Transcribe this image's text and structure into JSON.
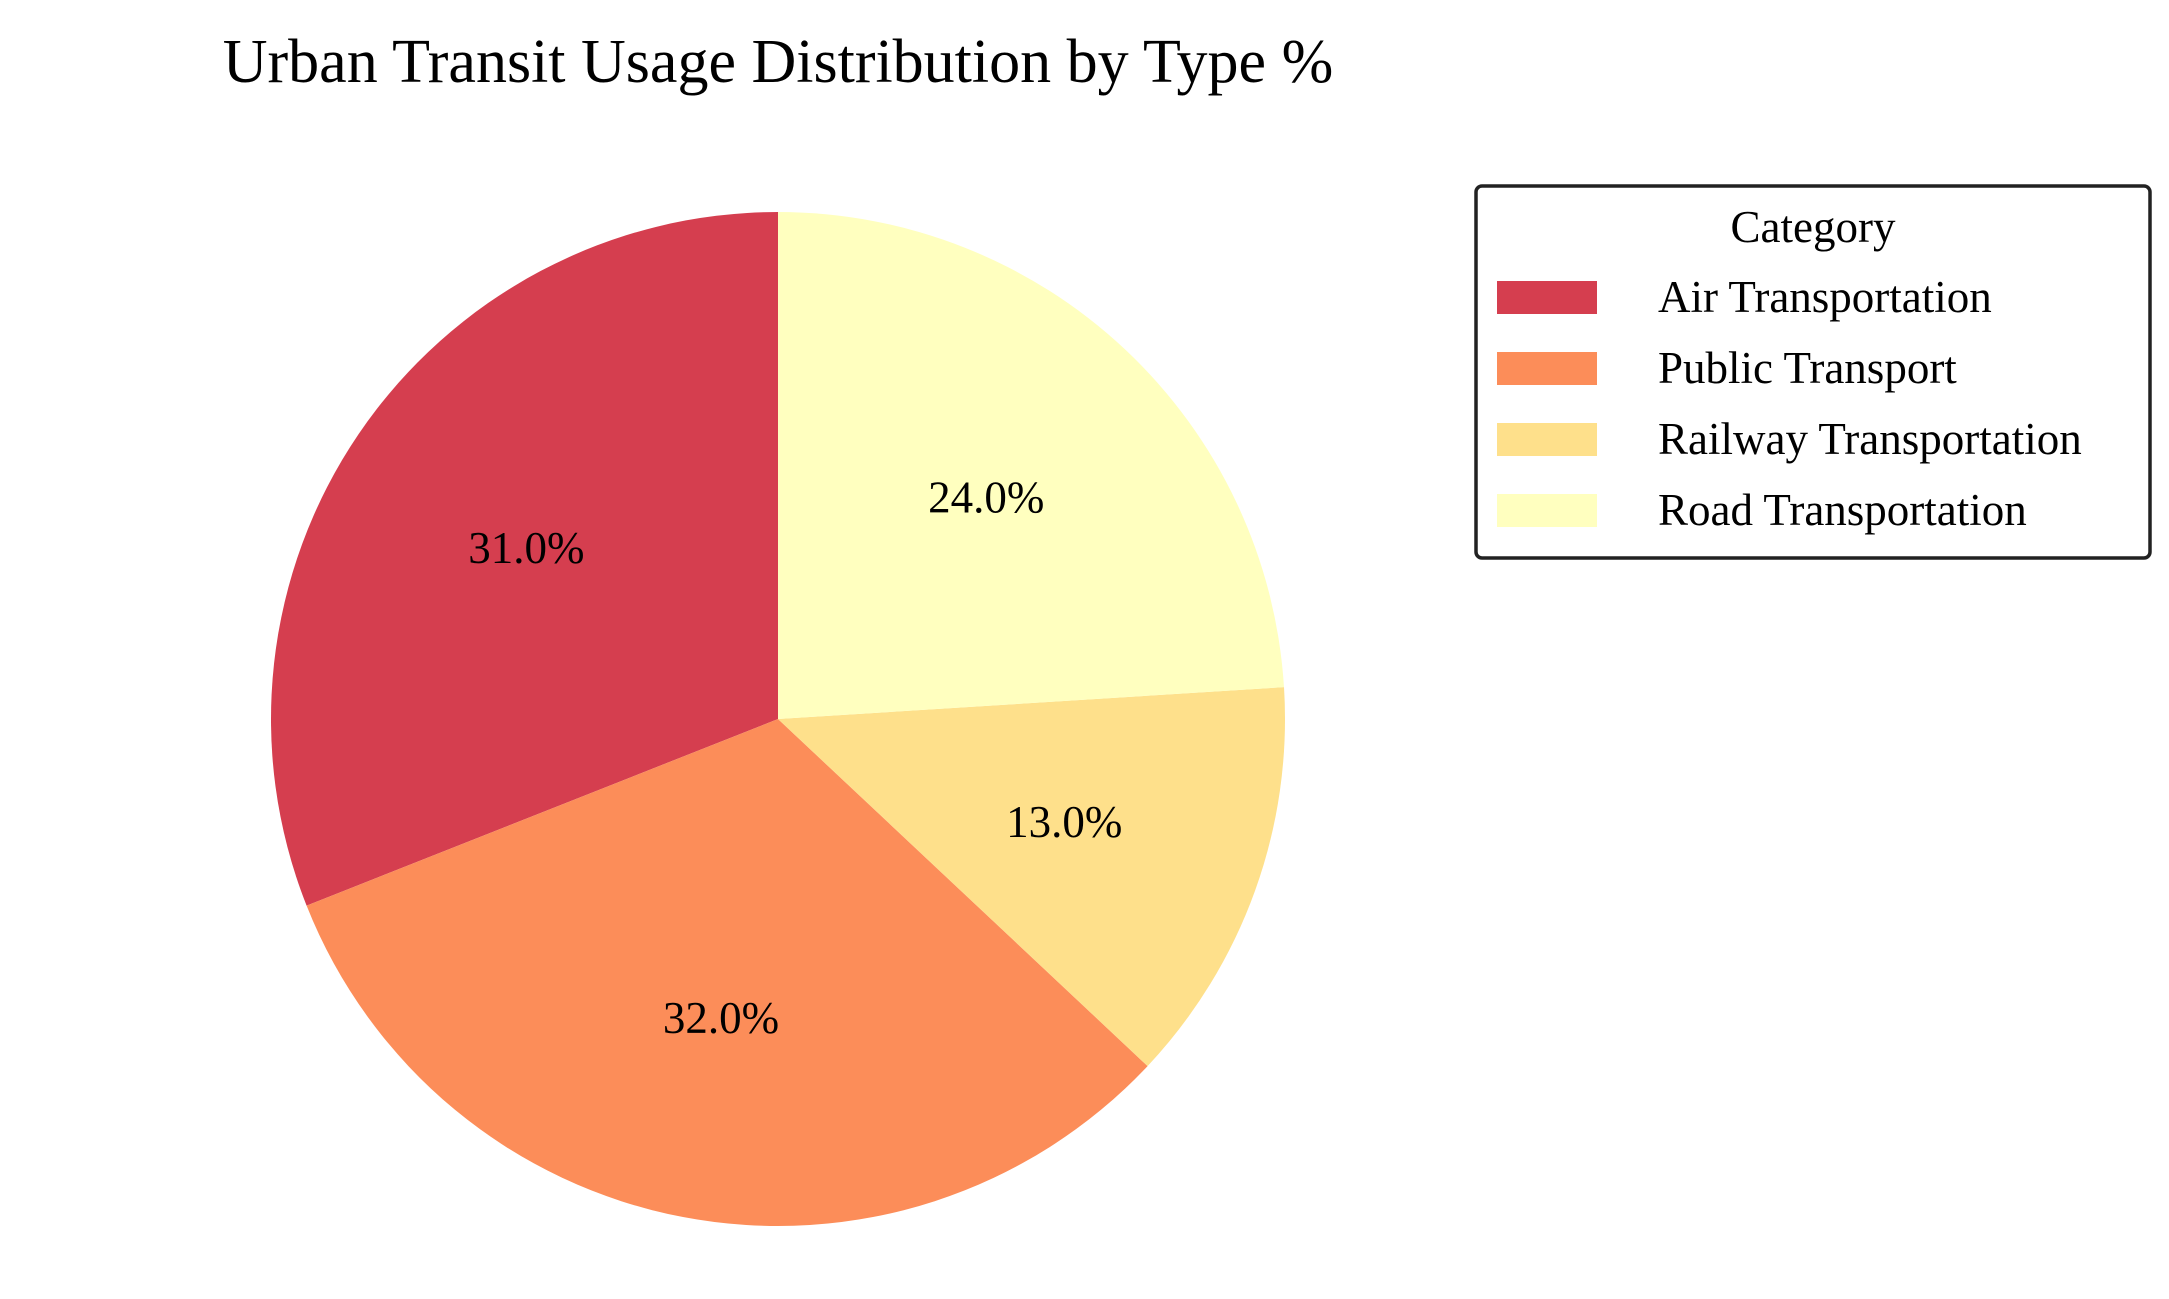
{
  "chart_data": {
    "type": "pie",
    "title": "Urban Transit Usage Distribution by Type %",
    "categories": [
      "Air Transportation",
      "Public Transport",
      "Railway Transportation",
      "Road Transportation"
    ],
    "values": [
      31.0,
      32.0,
      13.0,
      24.0
    ],
    "value_labels": [
      "31.0%",
      "32.0%",
      "13.0%",
      "24.0%"
    ],
    "colors": [
      "#d53e4f",
      "#fc8d59",
      "#fee08b",
      "#ffffbf"
    ],
    "start_angle": 90,
    "direction": "counterclockwise",
    "legend": {
      "title": "Category",
      "placement": "right"
    }
  }
}
